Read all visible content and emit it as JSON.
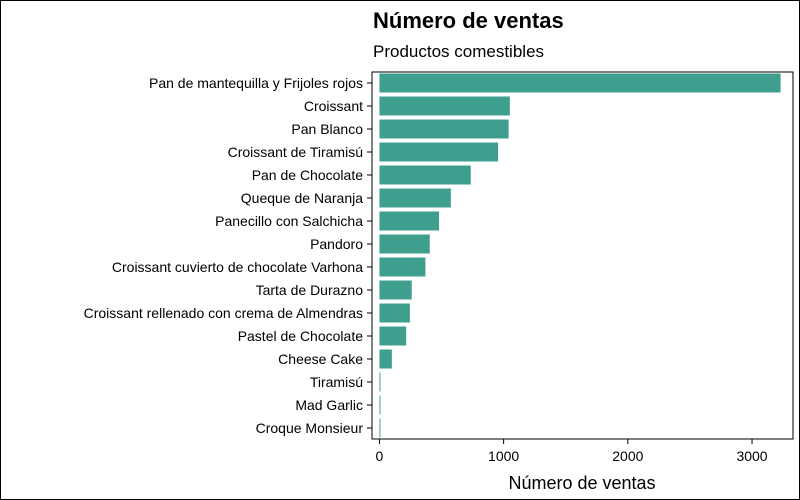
{
  "chart_data": {
    "type": "bar",
    "orientation": "horizontal",
    "title": "Número de ventas",
    "subtitle": "Productos comestibles",
    "xlabel": "Número de ventas",
    "ylabel": "",
    "xlim": [
      -60,
      3330
    ],
    "xticks": [
      0,
      1000,
      2000,
      3000
    ],
    "grid": false,
    "bar_color": "#3F9F8F",
    "categories": [
      "Pan de mantequilla y Frijoles rojos",
      "Croissant",
      "Pan Blanco",
      "Croissant de Tiramisú",
      "Pan de Chocolate",
      "Queque de Naranja",
      "Panecillo con Salchicha",
      "Pandoro",
      "Croissant cuvierto de chocolate Varhona",
      "Tarta de Durazno",
      "Croissant rellenado con crema de Almendras",
      "Pastel de Chocolate",
      "Cheese Cake",
      "Tiramisú",
      "Mad Garlic",
      "Croque Monsieur"
    ],
    "values": [
      3230,
      1050,
      1040,
      955,
      735,
      575,
      480,
      405,
      370,
      260,
      245,
      215,
      100,
      5,
      3,
      2
    ]
  }
}
